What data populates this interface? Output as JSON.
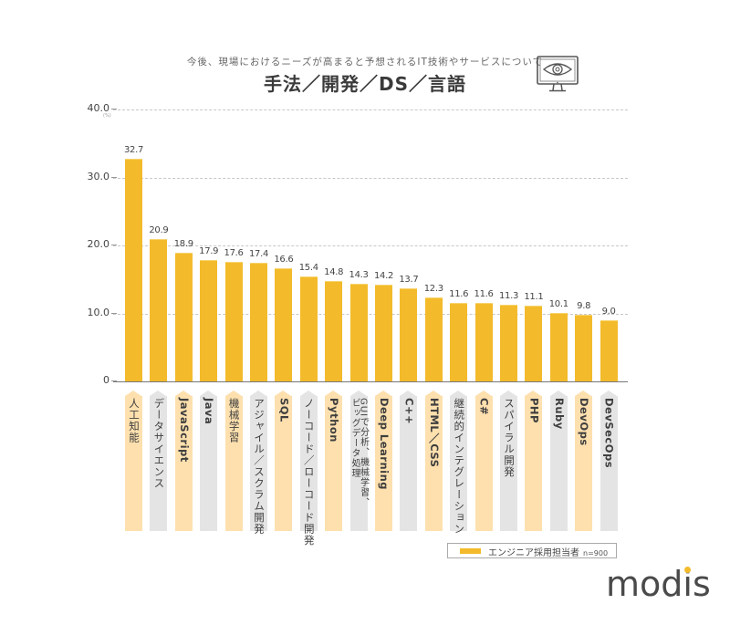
{
  "header": {
    "subtitle": "今後、現場におけるニーズが高まると予想されるIT技術やサービスについて",
    "title": "手法／開発／DS／言語",
    "icon": "monitor-eye-icon"
  },
  "chart_data": {
    "type": "bar",
    "title": "手法／開発／DS／言語",
    "subtitle": "今後、現場におけるニーズが高まると予想されるIT技術やサービスについて",
    "xlabel": "",
    "ylabel": "(%)",
    "ylim": [
      0,
      40
    ],
    "yticks": [
      "0",
      "10.0",
      "20.0",
      "30.0",
      "40.0"
    ],
    "grid": true,
    "legend_position": "bottom-right",
    "categories": [
      "人工知能",
      "データサイエンス",
      "JavaScript",
      "Java",
      "機械学習",
      "アジャイル／スクラム開発",
      "SQL",
      "ノーコード／ローコード開発",
      "Python",
      "GUIで分析、機械学習、ビッグデータ処理",
      "Deep Learning",
      "C++",
      "HTML／CSS",
      "継続的インテグレーション",
      "C#",
      "スパイラル開発",
      "PHP",
      "Ruby",
      "DevOps",
      "DevSecOps"
    ],
    "series": [
      {
        "name": "エンジニア採用担当者 n=900",
        "color": "#f3bb2b",
        "values": [
          32.7,
          20.9,
          18.9,
          17.9,
          17.6,
          17.4,
          16.6,
          15.4,
          14.8,
          14.3,
          14.2,
          13.7,
          12.3,
          11.6,
          11.6,
          11.3,
          11.1,
          10.1,
          9.8,
          9.0
        ]
      }
    ],
    "value_labels": [
      "32.7",
      "20.9",
      "18.9",
      "17.9",
      "17.6",
      "17.4",
      "16.6",
      "15.4",
      "14.8",
      "14.3",
      "14.2",
      "13.7",
      "12.3",
      "11.6",
      "11.6",
      "11.3",
      "11.1",
      "10.1",
      "9.8",
      "9.0"
    ]
  },
  "axis": {
    "unit": "(%)",
    "ticks": [
      {
        "label": "40.0",
        "value": 40
      },
      {
        "label": "30.0",
        "value": 30
      },
      {
        "label": "20.0",
        "value": 20
      },
      {
        "label": "10.0",
        "value": 10
      },
      {
        "label": "0",
        "value": 0
      }
    ]
  },
  "categories": [
    {
      "label": "人工知能",
      "line2": "",
      "value": 32.7,
      "value_label": "32.7",
      "tag": "orange",
      "jp": true
    },
    {
      "label": "データサイエンス",
      "line2": "",
      "value": 20.9,
      "value_label": "20.9",
      "tag": "gray",
      "jp": true
    },
    {
      "label": "JavaScript",
      "line2": "",
      "value": 18.9,
      "value_label": "18.9",
      "tag": "orange",
      "jp": false
    },
    {
      "label": "Java",
      "line2": "",
      "value": 17.9,
      "value_label": "17.9",
      "tag": "gray",
      "jp": false
    },
    {
      "label": "機械学習",
      "line2": "",
      "value": 17.6,
      "value_label": "17.6",
      "tag": "orange",
      "jp": true
    },
    {
      "label": "アジャイル／スクラム開発",
      "line2": "",
      "value": 17.4,
      "value_label": "17.4",
      "tag": "gray",
      "jp": true
    },
    {
      "label": "SQL",
      "line2": "",
      "value": 16.6,
      "value_label": "16.6",
      "tag": "orange",
      "jp": false
    },
    {
      "label": "ノーコード／ローコード開発",
      "line2": "",
      "value": 15.4,
      "value_label": "15.4",
      "tag": "gray",
      "jp": true
    },
    {
      "label": "Python",
      "line2": "",
      "value": 14.8,
      "value_label": "14.8",
      "tag": "orange",
      "jp": false
    },
    {
      "label": "GUIで分析、機械学習、",
      "line2": "ビッグデータ処理",
      "value": 14.3,
      "value_label": "14.3",
      "tag": "gray",
      "jp": true
    },
    {
      "label": "Deep Learning",
      "line2": "",
      "value": 14.2,
      "value_label": "14.2",
      "tag": "orange",
      "jp": false
    },
    {
      "label": "C++",
      "line2": "",
      "value": 13.7,
      "value_label": "13.7",
      "tag": "gray",
      "jp": false
    },
    {
      "label": "HTML／CSS",
      "line2": "",
      "value": 12.3,
      "value_label": "12.3",
      "tag": "orange",
      "jp": false
    },
    {
      "label": "継続的インテグレーション",
      "line2": "",
      "value": 11.6,
      "value_label": "11.6",
      "tag": "gray",
      "jp": true
    },
    {
      "label": "C#",
      "line2": "",
      "value": 11.6,
      "value_label": "11.6",
      "tag": "orange",
      "jp": false
    },
    {
      "label": "スパイラル開発",
      "line2": "",
      "value": 11.3,
      "value_label": "11.3",
      "tag": "gray",
      "jp": true
    },
    {
      "label": "PHP",
      "line2": "",
      "value": 11.1,
      "value_label": "11.1",
      "tag": "orange",
      "jp": false
    },
    {
      "label": "Ruby",
      "line2": "",
      "value": 10.1,
      "value_label": "10.1",
      "tag": "gray",
      "jp": false
    },
    {
      "label": "DevOps",
      "line2": "",
      "value": 9.8,
      "value_label": "9.8",
      "tag": "orange",
      "jp": false
    },
    {
      "label": "DevSecOps",
      "line2": "",
      "value": 9.0,
      "value_label": "9.0",
      "tag": "gray",
      "jp": false
    }
  ],
  "legend": {
    "label": "エンジニア採用担当者",
    "n": "n=900",
    "color": "#f3bb2b"
  },
  "brand": {
    "logo_text": "modis",
    "accent": "#f3bb2b"
  },
  "colors": {
    "bar": "#f3bb2b",
    "tag_orange": "#fde0ae",
    "tag_gray": "#e4e4e4"
  }
}
